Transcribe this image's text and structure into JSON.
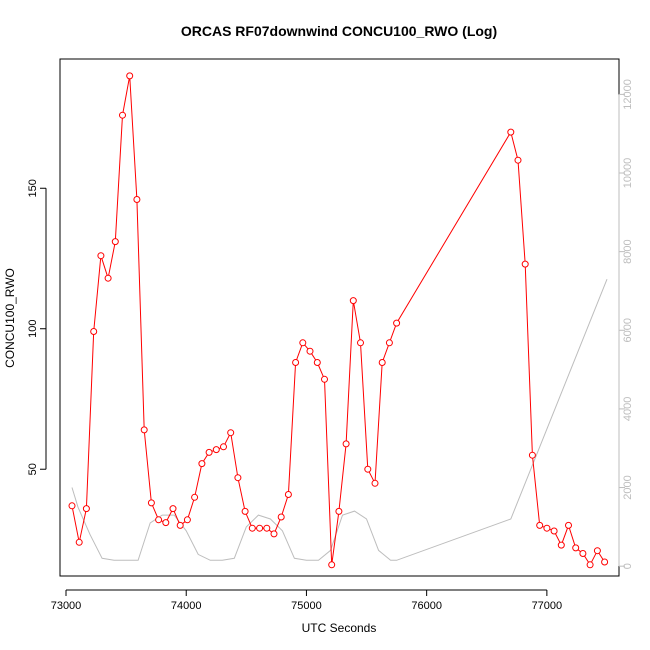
{
  "chart_data": {
    "type": "line",
    "title": "ORCAS RF07downwind CONCU100_RWO (Log)",
    "xlabel": "UTC Seconds",
    "ylabel": "CONCU100_RWO",
    "xlim": [
      72950,
      77600
    ],
    "ylim": [
      12,
      196
    ],
    "y2lim": [
      -250,
      12900
    ],
    "xticks": [
      73000,
      74000,
      75000,
      76000,
      77000
    ],
    "yticks": [
      50,
      100,
      150
    ],
    "y2ticks": [
      0,
      2000,
      4000,
      6000,
      8000,
      10000,
      12000
    ],
    "colors": {
      "primary": "#ff0000",
      "secondary": "#bdbdbd"
    },
    "series": [
      {
        "color": "#ff0000",
        "axis": "left",
        "markers": "open-circle",
        "x": [
          73050,
          73110,
          73170,
          73230,
          73290,
          73350,
          73410,
          73470,
          73530,
          73590,
          73650,
          73710,
          73770,
          73830,
          73890,
          73950,
          74010,
          74070,
          74130,
          74190,
          74250,
          74310,
          74370,
          74430,
          74490,
          74550,
          74610,
          74670,
          74730,
          74790,
          74850,
          74910,
          74970,
          75030,
          75090,
          75150,
          75210,
          75270,
          75330,
          75390,
          75450,
          75510,
          75570,
          75630,
          75690,
          75750,
          76700,
          76760,
          76820,
          76880,
          76940,
          77000,
          77060,
          77120,
          77180,
          77240,
          77300,
          77360,
          77420,
          77480
        ],
        "values": [
          37,
          24,
          36,
          99,
          126,
          118,
          131,
          176,
          190,
          146,
          64,
          38,
          32,
          31,
          36,
          30,
          32,
          40,
          52,
          56,
          57,
          58,
          63,
          47,
          35,
          29,
          29,
          29,
          27,
          33,
          41,
          88,
          95,
          92,
          88,
          82,
          16,
          35,
          59,
          110,
          95,
          50,
          45,
          88,
          95,
          102,
          170,
          160,
          123,
          55,
          30,
          29,
          28,
          23,
          30,
          22,
          20,
          16,
          21,
          17
        ]
      },
      {
        "color": "#bdbdbd",
        "axis": "right",
        "markers": "none",
        "x": [
          73050,
          73100,
          73200,
          73300,
          73400,
          73500,
          73600,
          73700,
          73800,
          73900,
          74000,
          74100,
          74200,
          74300,
          74400,
          74500,
          74600,
          74700,
          74800,
          74900,
          75000,
          75100,
          75200,
          75300,
          75400,
          75500,
          75600,
          75700,
          75750,
          76700,
          77500
        ],
        "values": [
          2000,
          1500,
          800,
          200,
          150,
          150,
          150,
          1100,
          1300,
          1300,
          900,
          300,
          150,
          150,
          200,
          1000,
          1300,
          1200,
          900,
          200,
          150,
          150,
          400,
          1300,
          1400,
          1200,
          400,
          150,
          150,
          1200,
          7300
        ]
      }
    ]
  }
}
